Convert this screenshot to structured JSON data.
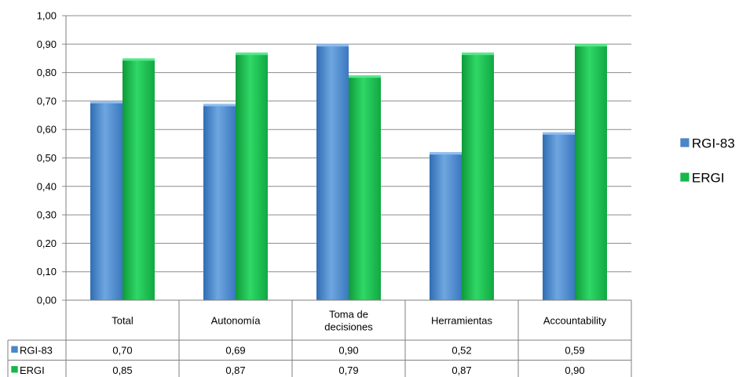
{
  "colors": {
    "rgi83": "#4a86c8",
    "ergi": "#15b84a",
    "grid": "#8c8c8c",
    "axis": "#7f7f7f"
  },
  "chart_data": {
    "type": "bar",
    "categories": [
      "Total",
      "Autonomía",
      "Toma de decisiones",
      "Herramientas",
      "Accountability"
    ],
    "category_lines": [
      [
        "Total"
      ],
      [
        "Autonomía"
      ],
      [
        "Toma de",
        "decisiones"
      ],
      [
        "Herramientas"
      ],
      [
        "Accountability"
      ]
    ],
    "series": [
      {
        "name": "RGI-83",
        "values": [
          0.7,
          0.69,
          0.9,
          0.52,
          0.59
        ],
        "labels": [
          "0,70",
          "0,69",
          "0,90",
          "0,52",
          "0,59"
        ]
      },
      {
        "name": "ERGI",
        "values": [
          0.85,
          0.87,
          0.79,
          0.87,
          0.9
        ],
        "labels": [
          "0,85",
          "0,87",
          "0,79",
          "0,87",
          "0,90"
        ]
      }
    ],
    "ylim": [
      0,
      1.0
    ],
    "yticks": [
      "0,00",
      "0,10",
      "0,20",
      "0,30",
      "0,40",
      "0,50",
      "0,60",
      "0,70",
      "0,80",
      "0,90",
      "1,00"
    ],
    "grid": true,
    "legend": "right",
    "data_table": true
  }
}
